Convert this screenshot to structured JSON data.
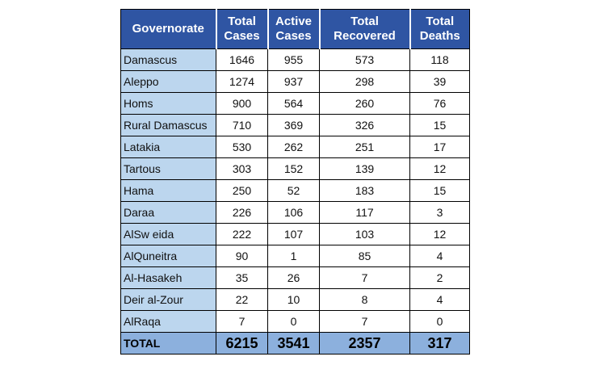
{
  "headers": {
    "governorate": "Governorate",
    "total_cases": [
      "Total",
      "Cases"
    ],
    "active_cases": [
      "Active",
      "Cases"
    ],
    "total_recovered": [
      "Total",
      "Recovered"
    ],
    "total_deaths": [
      "Total",
      "Deaths"
    ]
  },
  "rows": [
    {
      "governorate": "Damascus",
      "total_cases": "1646",
      "active_cases": "955",
      "total_recovered": "573",
      "total_deaths": "118"
    },
    {
      "governorate": "Aleppo",
      "total_cases": "1274",
      "active_cases": "937",
      "total_recovered": "298",
      "total_deaths": "39"
    },
    {
      "governorate": "Homs",
      "total_cases": "900",
      "active_cases": "564",
      "total_recovered": "260",
      "total_deaths": "76"
    },
    {
      "governorate": "Rural Damascus",
      "total_cases": "710",
      "active_cases": "369",
      "total_recovered": "326",
      "total_deaths": "15"
    },
    {
      "governorate": "Latakia",
      "total_cases": "530",
      "active_cases": "262",
      "total_recovered": "251",
      "total_deaths": "17"
    },
    {
      "governorate": "Tartous",
      "total_cases": "303",
      "active_cases": "152",
      "total_recovered": "139",
      "total_deaths": "12"
    },
    {
      "governorate": "Hama",
      "total_cases": "250",
      "active_cases": "52",
      "total_recovered": "183",
      "total_deaths": "15"
    },
    {
      "governorate": "Daraa",
      "total_cases": "226",
      "active_cases": "106",
      "total_recovered": "117",
      "total_deaths": "3"
    },
    {
      "governorate": "AlSw eida",
      "total_cases": "222",
      "active_cases": "107",
      "total_recovered": "103",
      "total_deaths": "12"
    },
    {
      "governorate": "AlQuneitra",
      "total_cases": "90",
      "active_cases": "1",
      "total_recovered": "85",
      "total_deaths": "4"
    },
    {
      "governorate": "Al-Hasakeh",
      "total_cases": "35",
      "active_cases": "26",
      "total_recovered": "7",
      "total_deaths": "2"
    },
    {
      "governorate": "Deir al-Zour",
      "total_cases": "22",
      "active_cases": "10",
      "total_recovered": "8",
      "total_deaths": "4"
    },
    {
      "governorate": "AlRaqa",
      "total_cases": "7",
      "active_cases": "0",
      "total_recovered": "7",
      "total_deaths": "0"
    }
  ],
  "total": {
    "label": "TOTAL",
    "total_cases": "6215",
    "active_cases": "3541",
    "total_recovered": "2357",
    "total_deaths": "317"
  },
  "colors": {
    "header_bg": "#2f55a3",
    "governorate_bg": "#bcd6ee",
    "total_row_bg": "#8cb0dd"
  }
}
